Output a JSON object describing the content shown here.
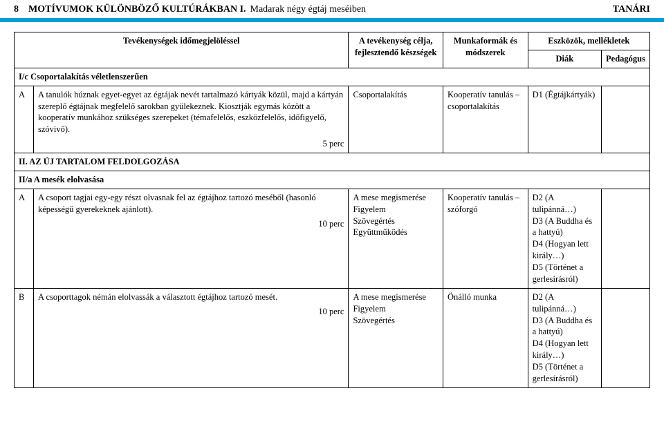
{
  "header": {
    "pageNumber": "8",
    "title": "Motívumok különböző kultúrákban I.",
    "subtitle": "Madarak négy égtáj meséiben",
    "right": "Tanári"
  },
  "columns": {
    "c1": "Tevékenységek időmegjelöléssel",
    "c2": "A tevékenység célja, fejlesztendő készségek",
    "c3": "Munkaformák és módszerek",
    "c4": "Eszközök, mellékletek",
    "c4a": "Diák",
    "c4b": "Pedagógus"
  },
  "sec1": {
    "title": "I/c Csoportalakítás véletlenszerűen"
  },
  "r1": {
    "marker": "A",
    "activity": "A tanulók húznak egyet-egyet az égtájak nevét tartalmazó kártyák közül, majd a kártyán szereplő égtájnak megfelelő sarokban gyülekeznek. Kiosztják egymás között a kooperatív munkához szükséges szerepeket (témafelelős, eszközfelelős, időfigyelő, szóvivő).",
    "timing": "5 perc",
    "goal": "Csoportalakítás",
    "form": "Kooperatív tanulás – csoportalakítás",
    "diak": "D1 (Égtájkártyák)",
    "ped": ""
  },
  "sec2": {
    "title": "II. Az új tartalom feldolgozása"
  },
  "sec3": {
    "title": "II/a A mesék elolvasása"
  },
  "r2": {
    "marker": "A",
    "activity": "A csoport tagjai egy-egy részt olvasnak fel az égtájhoz tartozó meséből (hasonló képességű gyerekeknek ajánlott).",
    "timing": "10 perc",
    "goal": "A mese megismerése\nFigyelem\nSzövegértés\nEgyüttműködés",
    "form": "Kooperatív tanulás – szóforgó",
    "diak": "D2 (A tulipánná…)\nD3 (A Buddha és a hattyú)\nD4 (Hogyan lett király…)\nD5 (Történet a gerlesírásról)",
    "ped": ""
  },
  "r3": {
    "marker": "B",
    "activity": "A csoporttagok némán elolvassák a választott égtájhoz tartozó mesét.",
    "timing": "10 perc",
    "goal": "A mese megismerése\nFigyelem\nSzövegértés",
    "form": "Önálló munka",
    "diak": "D2 (A tulipánná…)\nD3 (A Buddha és a hattyú)\nD4 (Hogyan lett király…)\nD5 (Történet a gerlesírásról)",
    "ped": ""
  }
}
